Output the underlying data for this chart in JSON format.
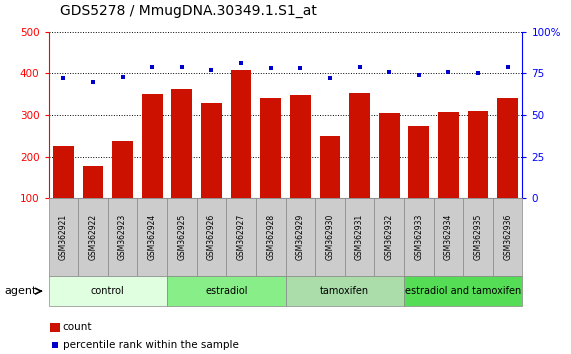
{
  "title": "GDS5278 / MmugDNA.30349.1.S1_at",
  "samples": [
    "GSM362921",
    "GSM362922",
    "GSM362923",
    "GSM362924",
    "GSM362925",
    "GSM362926",
    "GSM362927",
    "GSM362928",
    "GSM362929",
    "GSM362930",
    "GSM362931",
    "GSM362932",
    "GSM362933",
    "GSM362934",
    "GSM362935",
    "GSM362936"
  ],
  "bar_values": [
    225,
    178,
    238,
    350,
    363,
    330,
    408,
    342,
    348,
    250,
    352,
    305,
    273,
    308,
    310,
    340
  ],
  "dot_values": [
    72,
    70,
    73,
    79,
    79,
    77,
    81,
    78,
    78,
    72,
    79,
    76,
    74,
    76,
    75,
    79
  ],
  "bar_color": "#cc1100",
  "dot_color": "#0000cc",
  "ylim_left": [
    100,
    500
  ],
  "ylim_right": [
    0,
    100
  ],
  "yticks_left": [
    100,
    200,
    300,
    400,
    500
  ],
  "yticks_right": [
    0,
    25,
    50,
    75,
    100
  ],
  "yticklabels_right": [
    "0",
    "25",
    "50",
    "75",
    "100%"
  ],
  "groups": [
    {
      "label": "control",
      "start": 0,
      "end": 4,
      "color": "#e0ffe0"
    },
    {
      "label": "estradiol",
      "start": 4,
      "end": 8,
      "color": "#88ee88"
    },
    {
      "label": "tamoxifen",
      "start": 8,
      "end": 12,
      "color": "#aaddaa"
    },
    {
      "label": "estradiol and tamoxifen",
      "start": 12,
      "end": 16,
      "color": "#55dd55"
    }
  ],
  "agent_label": "agent",
  "legend_count_label": "count",
  "legend_pct_label": "percentile rank within the sample",
  "title_fontsize": 10,
  "bar_width": 0.7,
  "sample_cell_color": "#cccccc",
  "sample_cell_edge": "#888888"
}
